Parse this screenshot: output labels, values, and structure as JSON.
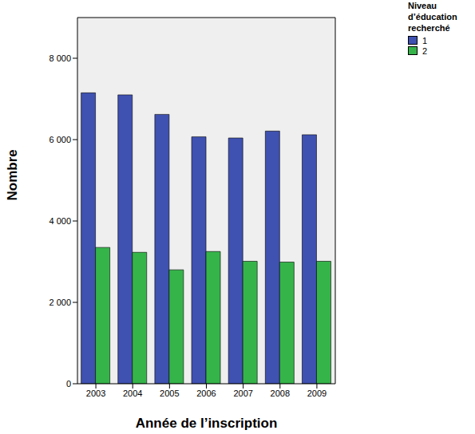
{
  "chart_data": {
    "type": "bar",
    "x_label": "Année de l’inscription",
    "y_label": "Nombre",
    "legend_title": "Niveau d’éducation recherché",
    "categories": [
      "2003",
      "2004",
      "2005",
      "2006",
      "2007",
      "2008",
      "2009"
    ],
    "series": [
      {
        "name": "1",
        "color": "#3f51b1",
        "values": [
          7150,
          7100,
          6620,
          6070,
          6040,
          6210,
          6120
        ]
      },
      {
        "name": "2",
        "color": "#35b44a",
        "values": [
          3350,
          3230,
          2800,
          3250,
          3010,
          2990,
          3010
        ]
      }
    ],
    "ylim": [
      0,
      9000
    ],
    "yticks": [
      0,
      {
        "value": 2000,
        "label": "2 000"
      },
      {
        "value": 4000,
        "label": "4 000"
      },
      {
        "value": 6000,
        "label": "6 000"
      },
      {
        "value": 8000,
        "label": "8 000"
      }
    ],
    "grid": false,
    "legend": "right"
  }
}
